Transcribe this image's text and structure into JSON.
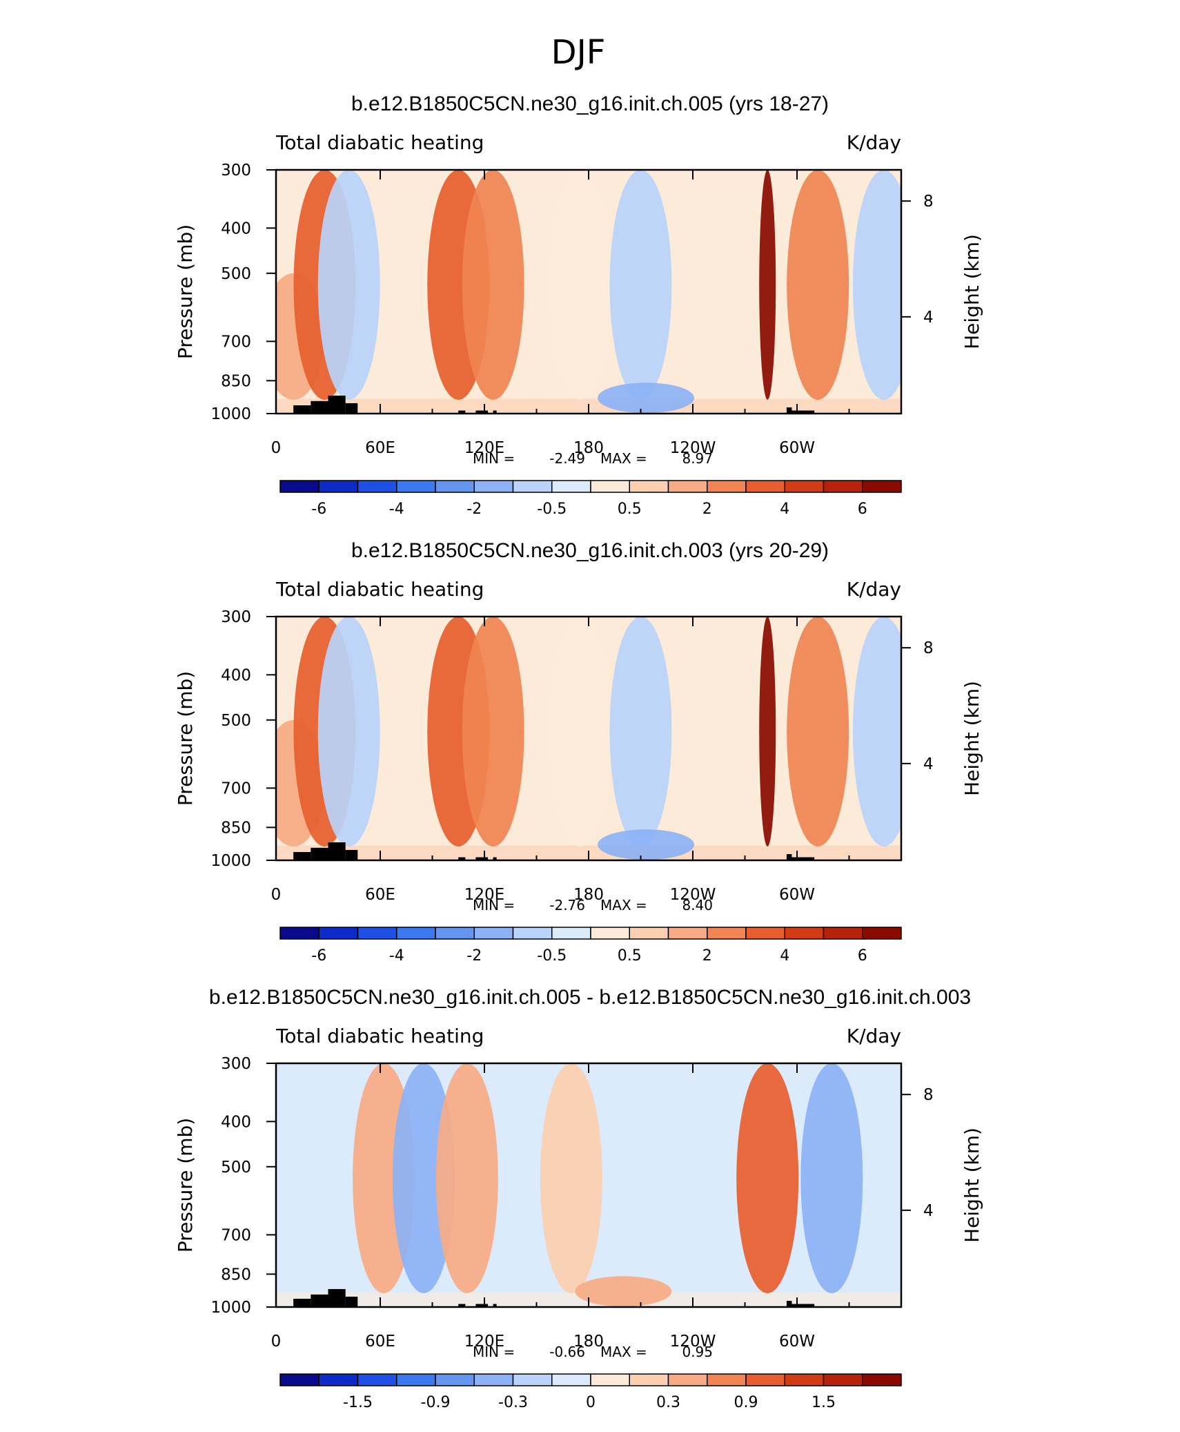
{
  "season": "DJF",
  "colors": {
    "frame": "#000000",
    "orography": "#000000",
    "palette": [
      "#0a0a8c",
      "#0d2bc8",
      "#1e50e6",
      "#3c78f0",
      "#6496f0",
      "#8cb2f5",
      "#b9d3fa",
      "#dcebfc",
      "#fdebd9",
      "#fbcfb0",
      "#f7aa84",
      "#f08452",
      "#e65e2e",
      "#d23c14",
      "#b4230a",
      "#8a0a00"
    ]
  },
  "chart_data": [
    {
      "type": "heatmap",
      "title": "b.e12.B1850C5CN.ne30_g16.init.ch.005 (yrs 18-27)",
      "variable_label": "Total diabatic heating",
      "units_label": "K/day",
      "ylabel": "Pressure (mb)",
      "ylabel_right": "Height (km)",
      "x_ticks": [
        "0",
        "60E",
        "120E",
        "180",
        "120W",
        "60W"
      ],
      "y_ticks": [
        "300",
        "400",
        "500",
        "700",
        "850",
        "1000"
      ],
      "y_right_ticks": [
        "8",
        "4"
      ],
      "stats": {
        "min_label": "MIN =",
        "min": "-2.49",
        "max_label": "MAX =",
        "max": "8.97"
      },
      "colorbar_labels": [
        "-6",
        "-4",
        "-2",
        "-0.5",
        "0.5",
        "2",
        "4",
        "6"
      ],
      "ylim": [
        1000,
        300
      ],
      "xlim": [
        0,
        360
      ],
      "features": [
        {
          "lon": 10,
          "p_top": 500,
          "value": 2.0
        },
        {
          "lon": 28,
          "p_top": 300,
          "value": 4.0
        },
        {
          "lon": 42,
          "p_top": 300,
          "value": -1.5
        },
        {
          "lon": 105,
          "p_top": 300,
          "value": 3.5
        },
        {
          "lon": 125,
          "p_top": 300,
          "value": 3.0
        },
        {
          "lon": 175,
          "p_top": 300,
          "value": 0.5
        },
        {
          "lon": 210,
          "p_top": 300,
          "value": -1.5
        },
        {
          "lon": 213,
          "p_top": 800,
          "value": -2.5
        },
        {
          "lon": 283,
          "p_top": 300,
          "value": 8.97
        },
        {
          "lon": 312,
          "p_top": 300,
          "value": 2.5
        },
        {
          "lon": 350,
          "p_top": 300,
          "value": -1.5
        }
      ]
    },
    {
      "type": "heatmap",
      "title": "b.e12.B1850C5CN.ne30_g16.init.ch.003 (yrs 20-29)",
      "variable_label": "Total diabatic heating",
      "units_label": "K/day",
      "ylabel": "Pressure (mb)",
      "ylabel_right": "Height (km)",
      "x_ticks": [
        "0",
        "60E",
        "120E",
        "180",
        "120W",
        "60W"
      ],
      "y_ticks": [
        "300",
        "400",
        "500",
        "700",
        "850",
        "1000"
      ],
      "y_right_ticks": [
        "8",
        "4"
      ],
      "stats": {
        "min_label": "MIN =",
        "min": "-2.76",
        "max_label": "MAX =",
        "max": "8.40"
      },
      "colorbar_labels": [
        "-6",
        "-4",
        "-2",
        "-0.5",
        "0.5",
        "2",
        "4",
        "6"
      ],
      "ylim": [
        1000,
        300
      ],
      "xlim": [
        0,
        360
      ],
      "features": [
        {
          "lon": 10,
          "p_top": 500,
          "value": 2.0
        },
        {
          "lon": 28,
          "p_top": 300,
          "value": 4.0
        },
        {
          "lon": 42,
          "p_top": 300,
          "value": -1.5
        },
        {
          "lon": 105,
          "p_top": 300,
          "value": 4.0
        },
        {
          "lon": 125,
          "p_top": 300,
          "value": 3.0
        },
        {
          "lon": 175,
          "p_top": 300,
          "value": 0.5
        },
        {
          "lon": 210,
          "p_top": 300,
          "value": -1.5
        },
        {
          "lon": 213,
          "p_top": 800,
          "value": -2.76
        },
        {
          "lon": 283,
          "p_top": 300,
          "value": 8.4
        },
        {
          "lon": 312,
          "p_top": 300,
          "value": 2.5
        },
        {
          "lon": 350,
          "p_top": 300,
          "value": -1.5
        }
      ]
    },
    {
      "type": "heatmap",
      "title": "b.e12.B1850C5CN.ne30_g16.init.ch.005 - b.e12.B1850C5CN.ne30_g16.init.ch.003",
      "variable_label": "Total diabatic heating",
      "units_label": "K/day",
      "ylabel": "Pressure (mb)",
      "ylabel_right": "Height (km)",
      "x_ticks": [
        "0",
        "60E",
        "120E",
        "180",
        "120W",
        "60W"
      ],
      "y_ticks": [
        "300",
        "400",
        "500",
        "700",
        "850",
        "1000"
      ],
      "y_right_ticks": [
        "8",
        "4"
      ],
      "stats": {
        "min_label": "MIN =",
        "min": "-0.66",
        "max_label": "MAX =",
        "max": "0.95"
      },
      "colorbar_labels": [
        "-1.5",
        "-0.9",
        "-0.3",
        "0",
        "0.3",
        "0.9",
        "1.5"
      ],
      "ylim": [
        1000,
        300
      ],
      "xlim": [
        0,
        360
      ],
      "features": [
        {
          "lon": 62,
          "p_top": 300,
          "value": 0.6
        },
        {
          "lon": 85,
          "p_top": 300,
          "value": -0.5
        },
        {
          "lon": 110,
          "p_top": 300,
          "value": 0.4
        },
        {
          "lon": 170,
          "p_top": 300,
          "value": 0.3
        },
        {
          "lon": 200,
          "p_top": 800,
          "value": 0.5
        },
        {
          "lon": 283,
          "p_top": 300,
          "value": 0.95
        },
        {
          "lon": 320,
          "p_top": 300,
          "value": -0.4
        }
      ]
    }
  ]
}
